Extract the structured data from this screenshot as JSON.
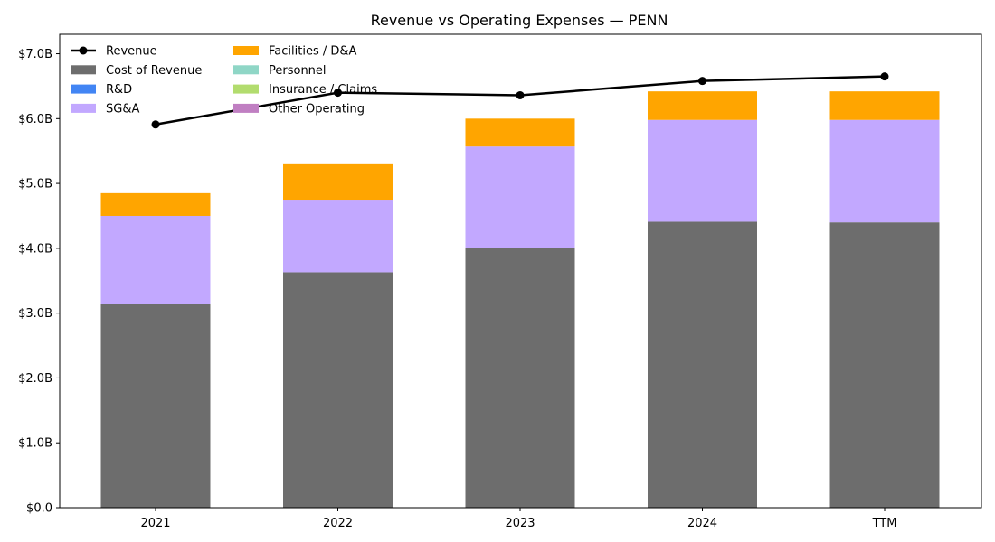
{
  "chart_data": {
    "type": "bar",
    "title": "Revenue vs Operating Expenses — PENN",
    "xlabel": "",
    "ylabel": "",
    "categories": [
      "2021",
      "2022",
      "2023",
      "2024",
      "TTM"
    ],
    "y_ticks": [
      "$0.0",
      "$1.0B",
      "$2.0B",
      "$3.0B",
      "$4.0B",
      "$5.0B",
      "$6.0B",
      "$7.0B"
    ],
    "ylim": [
      0,
      7.3
    ],
    "unit": "B",
    "stacked": true,
    "grid": false,
    "legend_position": "top-left",
    "series": [
      {
        "name": "Cost of Revenue",
        "color": "#6d6d6d",
        "values": [
          3.14,
          3.63,
          4.01,
          4.41,
          4.4
        ]
      },
      {
        "name": "R&D",
        "color": "#4285f4",
        "values": [
          0,
          0,
          0,
          0,
          0
        ]
      },
      {
        "name": "SG&A",
        "color": "#c2a8ff",
        "values": [
          1.36,
          1.12,
          1.56,
          1.57,
          1.58
        ]
      },
      {
        "name": "Facilities / D&A",
        "color": "#ffa500",
        "values": [
          0.35,
          0.56,
          0.43,
          0.44,
          0.44
        ]
      },
      {
        "name": "Personnel",
        "color": "#8fd6c6",
        "values": [
          0,
          0,
          0,
          0,
          0
        ]
      },
      {
        "name": "Insurance / Claims",
        "color": "#b2dc6e",
        "values": [
          0,
          0,
          0,
          0,
          0
        ]
      },
      {
        "name": "Other Operating",
        "color": "#c07fc2",
        "values": [
          0,
          0,
          0,
          0,
          0
        ]
      }
    ],
    "line_series": {
      "name": "Revenue",
      "color": "#000000",
      "values": [
        5.91,
        6.4,
        6.36,
        6.58,
        6.65
      ]
    }
  }
}
